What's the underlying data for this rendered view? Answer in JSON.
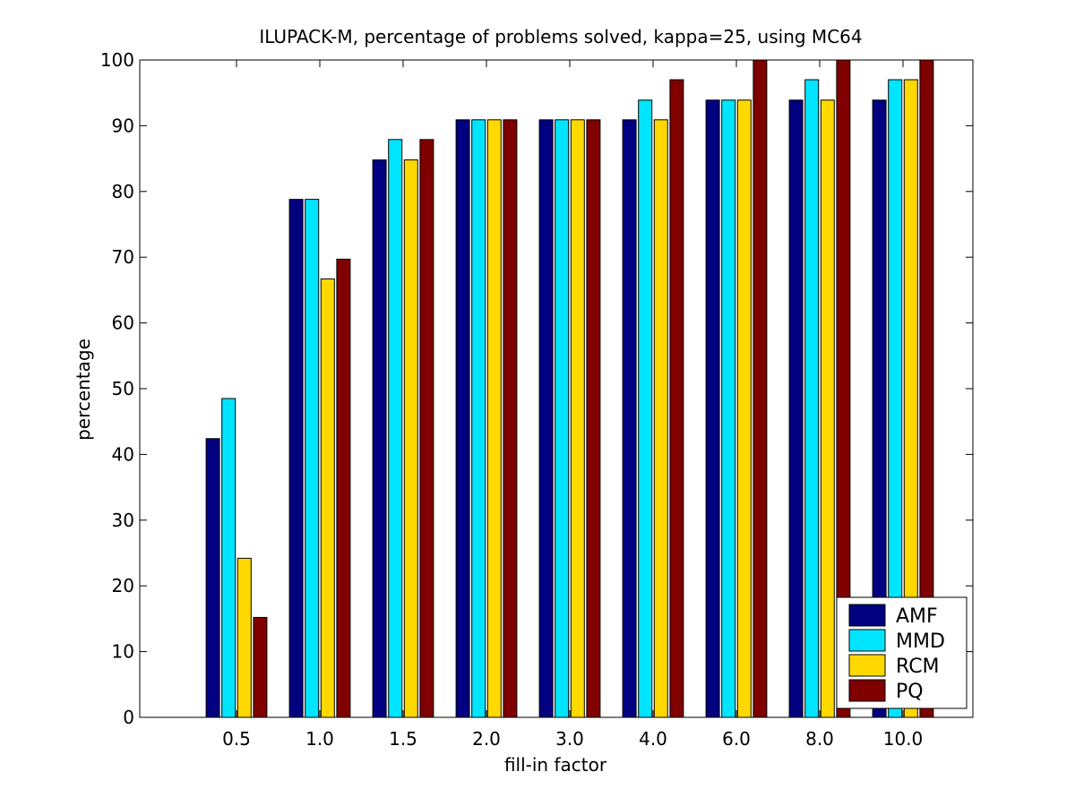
{
  "chart_data": {
    "type": "bar",
    "title": "ILUPACK-M, percentage of problems solved, kappa=25, using MC64",
    "xlabel": "fill-in factor",
    "ylabel": "percentage",
    "ylim": [
      0,
      100
    ],
    "yticks": [
      0,
      10,
      20,
      30,
      40,
      50,
      60,
      70,
      80,
      90,
      100
    ],
    "grid": false,
    "legend_position": "bottom-right",
    "categories": [
      "0.5",
      "1.0",
      "1.5",
      "2.0",
      "3.0",
      "4.0",
      "6.0",
      "8.0",
      "10.0"
    ],
    "series": [
      {
        "name": "AMF",
        "color": "#000080",
        "values": [
          42.4,
          78.8,
          84.8,
          90.9,
          90.9,
          90.9,
          93.9,
          93.9,
          93.9
        ]
      },
      {
        "name": "MMD",
        "color": "#00e5ff",
        "values": [
          48.5,
          78.8,
          87.9,
          90.9,
          90.9,
          93.9,
          93.9,
          97.0,
          97.0
        ]
      },
      {
        "name": "RCM",
        "color": "#ffd800",
        "values": [
          24.2,
          66.7,
          84.8,
          90.9,
          90.9,
          90.9,
          93.9,
          93.9,
          97.0
        ]
      },
      {
        "name": "PQ",
        "color": "#800000",
        "values": [
          15.2,
          69.7,
          87.9,
          90.9,
          90.9,
          97.0,
          100,
          100,
          100
        ]
      }
    ]
  }
}
